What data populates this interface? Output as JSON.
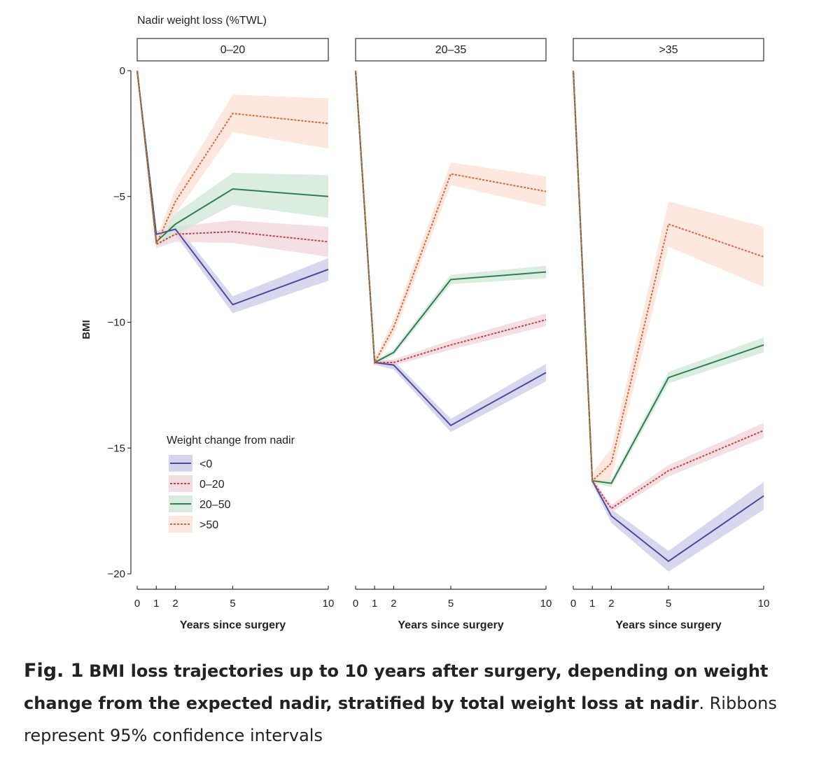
{
  "figure_header": "Nadir weight loss (%TWL)",
  "chart_data": {
    "type": "line",
    "ylabel": "BMI",
    "xlabel": "Years since surgery",
    "ylim": [
      -20,
      0
    ],
    "xlim": [
      0,
      10
    ],
    "x_ticks": [
      0,
      1,
      2,
      5,
      10
    ],
    "y_ticks": [
      0,
      -5,
      -10,
      -15,
      -20
    ],
    "x": [
      0,
      1,
      2,
      5,
      10
    ],
    "legend_title": "Weight change from nadir",
    "legend_position": "bottom-left of first panel",
    "series_styles": [
      {
        "name": "<0",
        "color": "#4a4aa0",
        "ribbon": "#c9cbe8",
        "dash": "solid"
      },
      {
        "name": "0–20",
        "color": "#c8434b",
        "ribbon": "#f0d4dc",
        "dash": "dotted"
      },
      {
        "name": "20–50",
        "color": "#2e7f4f",
        "ribbon": "#cfe6d6",
        "dash": "solid"
      },
      {
        "name": ">50",
        "color": "#e0643a",
        "ribbon": "#fbe0d4",
        "dash": "dotted"
      }
    ],
    "panels": [
      {
        "title": "0–20",
        "series": [
          {
            "name": "<0",
            "values": [
              0,
              -6.5,
              -6.3,
              -9.3,
              -7.9
            ],
            "ci": 0.45
          },
          {
            "name": "0–20",
            "values": [
              0,
              -6.9,
              -6.5,
              -6.4,
              -6.8
            ],
            "ci": 0.6
          },
          {
            "name": "20–50",
            "values": [
              0,
              -6.8,
              -6.1,
              -4.7,
              -5.0
            ],
            "ci": 0.85
          },
          {
            "name": ">50",
            "values": [
              0,
              -6.9,
              -5.2,
              -1.7,
              -2.1
            ],
            "ci": 1.0
          }
        ]
      },
      {
        "title": "20–35",
        "series": [
          {
            "name": "<0",
            "values": [
              0,
              -11.6,
              -11.7,
              -14.1,
              -12.0
            ],
            "ci": 0.35
          },
          {
            "name": "0–20",
            "values": [
              0,
              -11.6,
              -11.6,
              -10.9,
              -9.9
            ],
            "ci": 0.25
          },
          {
            "name": "20–50",
            "values": [
              0,
              -11.6,
              -11.2,
              -8.3,
              -8.0
            ],
            "ci": 0.25
          },
          {
            "name": ">50",
            "values": [
              0,
              -11.6,
              -10.2,
              -4.1,
              -4.8
            ],
            "ci": 0.6
          }
        ]
      },
      {
        "title": ">35",
        "series": [
          {
            "name": "<0",
            "values": [
              0,
              -16.3,
              -17.7,
              -19.5,
              -16.9
            ],
            "ci": 0.55
          },
          {
            "name": "0–20",
            "values": [
              0,
              -16.3,
              -17.4,
              -15.9,
              -14.3
            ],
            "ci": 0.3
          },
          {
            "name": "20–50",
            "values": [
              0,
              -16.3,
              -16.4,
              -12.2,
              -10.9
            ],
            "ci": 0.3
          },
          {
            "name": ">50",
            "values": [
              0,
              -16.3,
              -15.6,
              -6.1,
              -7.4
            ],
            "ci": 1.2
          }
        ]
      }
    ]
  },
  "caption": {
    "fig_label": "Fig. 1",
    "bold_text": "BMI loss trajectories up to 10 years after surgery, depending on weight change from the expected nadir, stratified by total weight loss at nadir",
    "rest_text": ". Ribbons represent 95% confidence intervals"
  }
}
